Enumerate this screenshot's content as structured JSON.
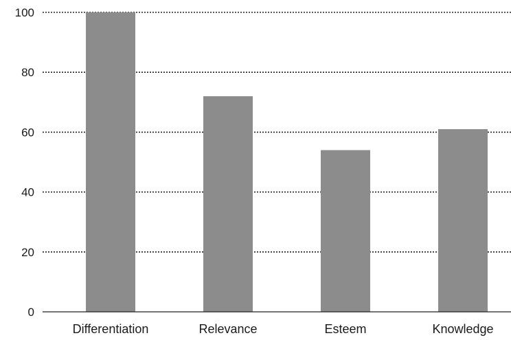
{
  "chart_data": {
    "type": "bar",
    "categories": [
      "Differentiation",
      "Relevance",
      "Esteem",
      "Knowledge"
    ],
    "values": [
      100,
      72,
      54,
      61
    ],
    "ylim": [
      0,
      100
    ],
    "yticks": [
      "0",
      "20",
      "40",
      "60",
      "80",
      "100"
    ],
    "title": "",
    "xlabel": "",
    "ylabel": "",
    "grid": "dotted horizontal",
    "colors": {
      "bar": "#8c8c8c",
      "grid": "#222222",
      "axis": "#222222"
    }
  }
}
